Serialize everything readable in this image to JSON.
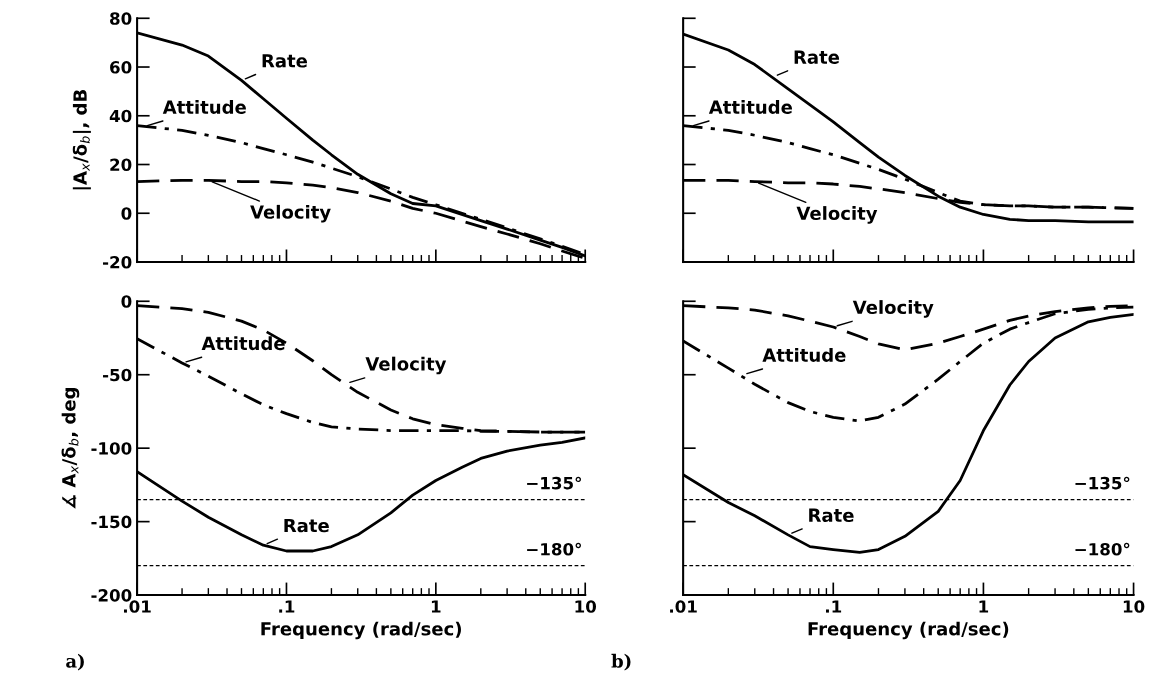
{
  "chart_data": [
    {
      "type": "line",
      "ylabel": "|A$_{x}$/δ$_{b}$|, dB",
      "x": [
        0.01,
        0.02,
        0.03,
        0.05,
        0.07,
        0.1,
        0.15,
        0.2,
        0.3,
        0.5,
        0.7,
        1,
        2,
        3,
        5,
        7,
        10
      ],
      "series": [
        {
          "color": "#000000",
          "line_style": "solid",
          "values": [
            74,
            69,
            64.5,
            54.5,
            47,
            39,
            30,
            24,
            16,
            8,
            4,
            3,
            -3,
            -6.5,
            -11,
            -14,
            -17.5
          ]
        },
        {
          "color": "#000000",
          "line_style": "dashdot",
          "values": [
            36,
            34,
            32,
            29,
            26.5,
            24,
            21,
            18.5,
            15,
            10,
            6.5,
            3.5,
            -2.5,
            -6,
            -10.5,
            -13.5,
            -17
          ]
        },
        {
          "color": "#000000",
          "line_style": "dashed",
          "values": [
            13,
            13.5,
            13.5,
            13,
            13,
            12.5,
            11.5,
            10.5,
            8.5,
            5,
            2,
            0,
            -5.5,
            -8.5,
            -12.5,
            -15.5,
            -18.5
          ]
        }
      ],
      "annotations": [
        {
          "text": "Rate",
          "x": 0.05,
          "y": 54.5
        },
        {
          "text": "Attitude",
          "x": 0.011,
          "y": 35.5
        },
        {
          "text": "Velocity",
          "x": 0.03,
          "y": 13.5
        }
      ],
      "xlim": [
        0.01,
        10
      ],
      "xticks": [
        {
          "value": 0.01,
          "label": null
        },
        {
          "value": 0.1,
          "label": null
        },
        {
          "value": 1,
          "label": null
        },
        {
          "value": 10,
          "label": null
        }
      ],
      "ylim": [
        -20,
        80
      ],
      "yticks": [
        -20,
        0,
        20,
        40,
        60,
        80
      ],
      "log": "x",
      "grid": false,
      "tick_labels": "y"
    },
    {
      "type": "line",
      "x": [
        0.01,
        0.02,
        0.03,
        0.05,
        0.07,
        0.1,
        0.15,
        0.2,
        0.3,
        0.5,
        0.7,
        1,
        1.5,
        2,
        3,
        5,
        10
      ],
      "series": [
        {
          "color": "#000000",
          "line_style": "solid",
          "values": [
            73.5,
            67,
            61,
            51,
            44.5,
            37.5,
            29,
            23,
            15.5,
            7,
            2.5,
            -0.5,
            -2.5,
            -3,
            -3,
            -3.5,
            -3.5
          ]
        },
        {
          "color": "#000000",
          "line_style": "dashdot",
          "values": [
            36,
            34,
            32,
            29,
            26.5,
            24,
            20.5,
            18,
            14,
            8.5,
            5,
            3.5,
            3,
            3,
            2.5,
            2.5,
            2
          ]
        },
        {
          "color": "#000000",
          "line_style": "dashed",
          "values": [
            13.5,
            13.5,
            13,
            12.5,
            12.5,
            12,
            11,
            10,
            8.5,
            6,
            4.5,
            3.5,
            3,
            3,
            2.5,
            2.5,
            2
          ]
        }
      ],
      "annotations": [
        {
          "text": "Rate",
          "x": 0.04,
          "y": 56
        },
        {
          "text": "Attitude",
          "x": 0.011,
          "y": 35.5
        },
        {
          "text": "Velocity",
          "x": 0.03,
          "y": 13
        }
      ],
      "xlim": [
        0.01,
        10
      ],
      "xticks": [
        {
          "value": 0.01,
          "label": null
        },
        {
          "value": 0.1,
          "label": null
        },
        {
          "value": 1,
          "label": null
        },
        {
          "value": 10,
          "label": null
        }
      ],
      "ylim": [
        -20,
        80
      ],
      "yticks": [
        {
          "value": -20,
          "label": null
        },
        {
          "value": 0,
          "label": null
        },
        {
          "value": 20,
          "label": null
        },
        {
          "value": 40,
          "label": null
        },
        {
          "value": 60,
          "label": null
        },
        {
          "value": 80,
          "label": null
        }
      ],
      "log": "x",
      "grid": false,
      "tick_labels": false
    },
    {
      "type": "line",
      "xlabel": "Frequency (rad/sec)",
      "ylabel": "∡ A$_{x}$/δ$_{b}$, deg",
      "x": [
        0.01,
        0.02,
        0.03,
        0.05,
        0.07,
        0.1,
        0.15,
        0.2,
        0.3,
        0.5,
        0.7,
        1,
        1.5,
        2,
        3,
        5,
        7,
        10
      ],
      "series": [
        {
          "color": "#000000",
          "line_style": "solid",
          "values": [
            -116,
            -136,
            -147,
            -159,
            -166,
            -170,
            -170,
            -167,
            -159,
            -144,
            -132,
            -122,
            -113,
            -107,
            -102,
            -98,
            -96,
            -93
          ]
        },
        {
          "color": "#000000",
          "line_style": "dashdot",
          "values": [
            -25.5,
            -42,
            -51,
            -63,
            -70.5,
            -76.5,
            -82.5,
            -85.5,
            -87,
            -88,
            -88,
            -88,
            -88,
            -88.5,
            -88.5,
            -89,
            -89,
            -89
          ]
        },
        {
          "color": "#000000",
          "line_style": "dashed",
          "values": [
            -3,
            -5,
            -7.5,
            -13.5,
            -19.5,
            -28.5,
            -40.5,
            -50,
            -62,
            -74,
            -80,
            -84,
            -86.5,
            -88,
            -88.5,
            -89,
            -89,
            -89
          ]
        }
      ],
      "annotations": [
        {
          "text": "Rate",
          "x": 0.07,
          "y": -166
        },
        {
          "text": "Attitude",
          "x": 0.02,
          "y": -42
        },
        {
          "text": "Velocity",
          "x": 0.25,
          "y": -56
        },
        "a)"
      ],
      "ref_lines": [
        {
          "axis": "y",
          "value": -135,
          "label": "−135°",
          "color": "#000000",
          "line_style": "dashed"
        },
        {
          "axis": "y",
          "value": -180,
          "label": "−180°",
          "color": "#000000",
          "line_style": "dashed"
        }
      ],
      "xlim": [
        0.01,
        10
      ],
      "xticks": [
        {
          "value": 0.01,
          "label": ".01"
        },
        {
          "value": 0.1,
          "label": ".1"
        },
        1,
        10
      ],
      "ylim": [
        -200,
        0
      ],
      "yticks": [
        -200,
        -150,
        -100,
        -50,
        0
      ],
      "log": "x",
      "grid": false
    },
    {
      "type": "line",
      "xlabel": "Frequency (rad/sec)",
      "x": [
        0.01,
        0.02,
        0.03,
        0.05,
        0.07,
        0.1,
        0.15,
        0.2,
        0.3,
        0.5,
        0.7,
        1,
        1.5,
        2,
        3,
        5,
        7,
        10
      ],
      "series": [
        {
          "color": "#000000",
          "line_style": "solid",
          "values": [
            -118,
            -137,
            -146,
            -159,
            -167,
            -169,
            -171,
            -169,
            -160,
            -143,
            -122,
            -88,
            -57,
            -41,
            -25,
            -14,
            -11,
            -9
          ]
        },
        {
          "color": "#000000",
          "line_style": "dashdot",
          "values": [
            -27,
            -45.5,
            -56.5,
            -69,
            -75,
            -79,
            -81.5,
            -79,
            -70,
            -53,
            -41,
            -28.5,
            -19,
            -14.5,
            -8.5,
            -5.5,
            -4.5,
            -4
          ]
        },
        {
          "color": "#000000",
          "line_style": "dashed",
          "values": [
            -3,
            -4.5,
            -6,
            -10,
            -13.5,
            -17.5,
            -24,
            -29,
            -33,
            -28.5,
            -24,
            -19,
            -13,
            -10,
            -7,
            -4.5,
            -3.5,
            -3
          ]
        }
      ],
      "annotations": [
        {
          "text": "Rate",
          "x": 0.05,
          "y": -159
        },
        {
          "text": "Attitude",
          "x": 0.025,
          "y": -50
        },
        {
          "text": "Velocity",
          "x": 0.1,
          "y": -17.5
        },
        "b)"
      ],
      "ref_lines": [
        {
          "axis": "y",
          "value": -135,
          "label": "−135°",
          "color": "#000000",
          "line_style": "dashed"
        },
        {
          "axis": "y",
          "value": -180,
          "label": "−180°",
          "color": "#000000",
          "line_style": "dashed"
        }
      ],
      "xlim": [
        0.01,
        10
      ],
      "xticks": [
        {
          "value": 0.01,
          "label": ".01"
        },
        {
          "value": 0.1,
          "label": ".1"
        },
        1,
        10
      ],
      "ylim": [
        -200,
        0
      ],
      "yticks": [
        {
          "value": -200,
          "label": null
        },
        {
          "value": -150,
          "label": null
        },
        {
          "value": -100,
          "label": null
        },
        {
          "value": -50,
          "label": null
        },
        {
          "value": 0,
          "label": null
        }
      ],
      "log": "x",
      "grid": false,
      "tick_labels": "x"
    }
  ]
}
